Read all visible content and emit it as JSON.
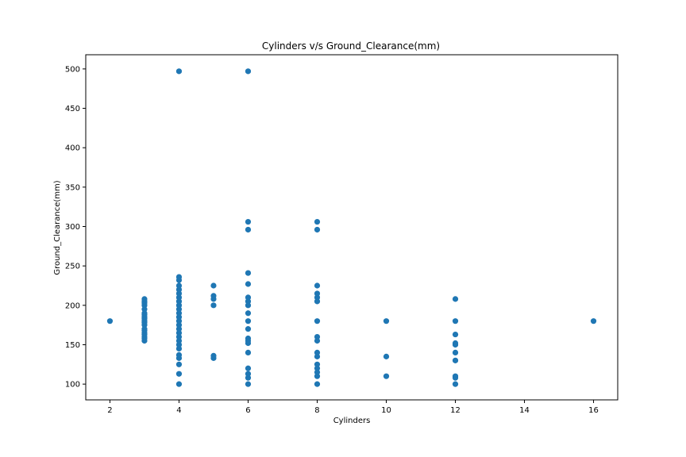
{
  "chart_data": {
    "type": "scatter",
    "title": "Cylinders v/s Ground_Clearance(mm)",
    "xlabel": "Cylinders",
    "ylabel": "Ground_Clearance(mm)",
    "xlim": [
      1.3,
      16.7
    ],
    "ylim": [
      80,
      518
    ],
    "xticks": [
      2,
      4,
      6,
      8,
      10,
      12,
      14,
      16
    ],
    "yticks": [
      100,
      150,
      200,
      250,
      300,
      350,
      400,
      450,
      500
    ],
    "grid": false,
    "marker_color": "#1f77b4",
    "series": [
      {
        "points": [
          [
            2,
            180
          ],
          [
            3,
            155
          ],
          [
            3,
            158
          ],
          [
            3,
            160
          ],
          [
            3,
            163
          ],
          [
            3,
            165
          ],
          [
            3,
            168
          ],
          [
            3,
            170
          ],
          [
            3,
            175
          ],
          [
            3,
            178
          ],
          [
            3,
            180
          ],
          [
            3,
            183
          ],
          [
            3,
            185
          ],
          [
            3,
            188
          ],
          [
            3,
            190
          ],
          [
            3,
            195
          ],
          [
            3,
            200
          ],
          [
            3,
            203
          ],
          [
            3,
            205
          ],
          [
            3,
            208
          ],
          [
            4,
            100
          ],
          [
            4,
            113
          ],
          [
            4,
            125
          ],
          [
            4,
            133
          ],
          [
            4,
            137
          ],
          [
            4,
            145
          ],
          [
            4,
            150
          ],
          [
            4,
            155
          ],
          [
            4,
            160
          ],
          [
            4,
            165
          ],
          [
            4,
            170
          ],
          [
            4,
            175
          ],
          [
            4,
            180
          ],
          [
            4,
            185
          ],
          [
            4,
            190
          ],
          [
            4,
            195
          ],
          [
            4,
            200
          ],
          [
            4,
            205
          ],
          [
            4,
            210
          ],
          [
            4,
            215
          ],
          [
            4,
            220
          ],
          [
            4,
            225
          ],
          [
            4,
            232
          ],
          [
            4,
            236
          ],
          [
            4,
            497
          ],
          [
            5,
            133
          ],
          [
            5,
            136
          ],
          [
            5,
            200
          ],
          [
            5,
            208
          ],
          [
            5,
            212
          ],
          [
            5,
            225
          ],
          [
            6,
            100
          ],
          [
            6,
            108
          ],
          [
            6,
            113
          ],
          [
            6,
            120
          ],
          [
            6,
            140
          ],
          [
            6,
            152
          ],
          [
            6,
            155
          ],
          [
            6,
            158
          ],
          [
            6,
            170
          ],
          [
            6,
            180
          ],
          [
            6,
            190
          ],
          [
            6,
            200
          ],
          [
            6,
            205
          ],
          [
            6,
            210
          ],
          [
            6,
            227
          ],
          [
            6,
            241
          ],
          [
            6,
            296
          ],
          [
            6,
            306
          ],
          [
            6,
            497
          ],
          [
            8,
            100
          ],
          [
            8,
            110
          ],
          [
            8,
            115
          ],
          [
            8,
            120
          ],
          [
            8,
            125
          ],
          [
            8,
            135
          ],
          [
            8,
            140
          ],
          [
            8,
            155
          ],
          [
            8,
            160
          ],
          [
            8,
            180
          ],
          [
            8,
            205
          ],
          [
            8,
            210
          ],
          [
            8,
            215
          ],
          [
            8,
            225
          ],
          [
            8,
            296
          ],
          [
            8,
            306
          ],
          [
            10,
            110
          ],
          [
            10,
            135
          ],
          [
            10,
            180
          ],
          [
            12,
            100
          ],
          [
            12,
            108
          ],
          [
            12,
            110
          ],
          [
            12,
            130
          ],
          [
            12,
            140
          ],
          [
            12,
            150
          ],
          [
            12,
            152
          ],
          [
            12,
            163
          ],
          [
            12,
            180
          ],
          [
            12,
            208
          ],
          [
            16,
            180
          ]
        ]
      }
    ]
  }
}
